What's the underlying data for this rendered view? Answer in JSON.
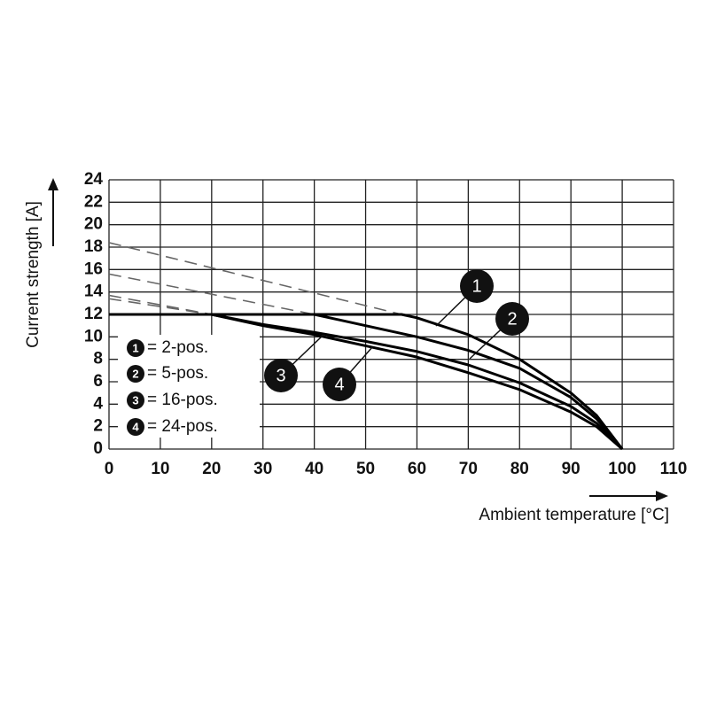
{
  "chart_data": {
    "type": "line",
    "y_label": "Current strength [A]",
    "x_label": "Ambient temperature [°C]",
    "xlim": [
      0,
      110
    ],
    "xticks": [
      0,
      10,
      20,
      30,
      40,
      50,
      60,
      70,
      80,
      90,
      100,
      110
    ],
    "ylim": [
      0,
      24
    ],
    "yticks": [
      0,
      2,
      4,
      6,
      8,
      10,
      12,
      14,
      16,
      18,
      20,
      22,
      24
    ],
    "grid": true,
    "series": [
      {
        "name": "= 2-pos.",
        "marker_label": "1",
        "color": "#000000",
        "x": [
          0,
          57,
          60,
          70,
          80,
          90,
          95,
          100
        ],
        "values": [
          12,
          12,
          11.7,
          10.2,
          8.0,
          5.0,
          3.0,
          0
        ],
        "extrapolation": {
          "x": [
            0,
            57
          ],
          "values": [
            18.4,
            12
          ]
        }
      },
      {
        "name": "= 5-pos.",
        "marker_label": "2",
        "color": "#000000",
        "x": [
          0,
          40,
          50,
          60,
          70,
          80,
          90,
          95,
          100
        ],
        "values": [
          12,
          12,
          11.0,
          10.0,
          8.8,
          7.2,
          4.6,
          2.7,
          0
        ],
        "extrapolation": {
          "x": [
            0,
            40
          ],
          "values": [
            15.6,
            12
          ]
        }
      },
      {
        "name": "= 16-pos.",
        "marker_label": "3",
        "color": "#000000",
        "x": [
          0,
          20,
          30,
          40,
          50,
          60,
          70,
          80,
          90,
          95,
          100
        ],
        "values": [
          12,
          12,
          11.0,
          10.2,
          9.2,
          8.2,
          6.8,
          5.3,
          3.3,
          2.0,
          0
        ],
        "extrapolation": {
          "x": [
            0,
            20
          ],
          "values": [
            13.7,
            12
          ]
        }
      },
      {
        "name": "= 24-pos.",
        "marker_label": "4",
        "color": "#000000",
        "x": [
          0,
          20,
          30,
          40,
          50,
          60,
          70,
          80,
          90,
          95,
          100
        ],
        "values": [
          12,
          12,
          11.1,
          10.4,
          9.6,
          8.7,
          7.5,
          5.9,
          3.8,
          2.3,
          0
        ],
        "extrapolation": {
          "x": [
            0,
            20
          ],
          "values": [
            13.4,
            12
          ]
        }
      }
    ]
  }
}
